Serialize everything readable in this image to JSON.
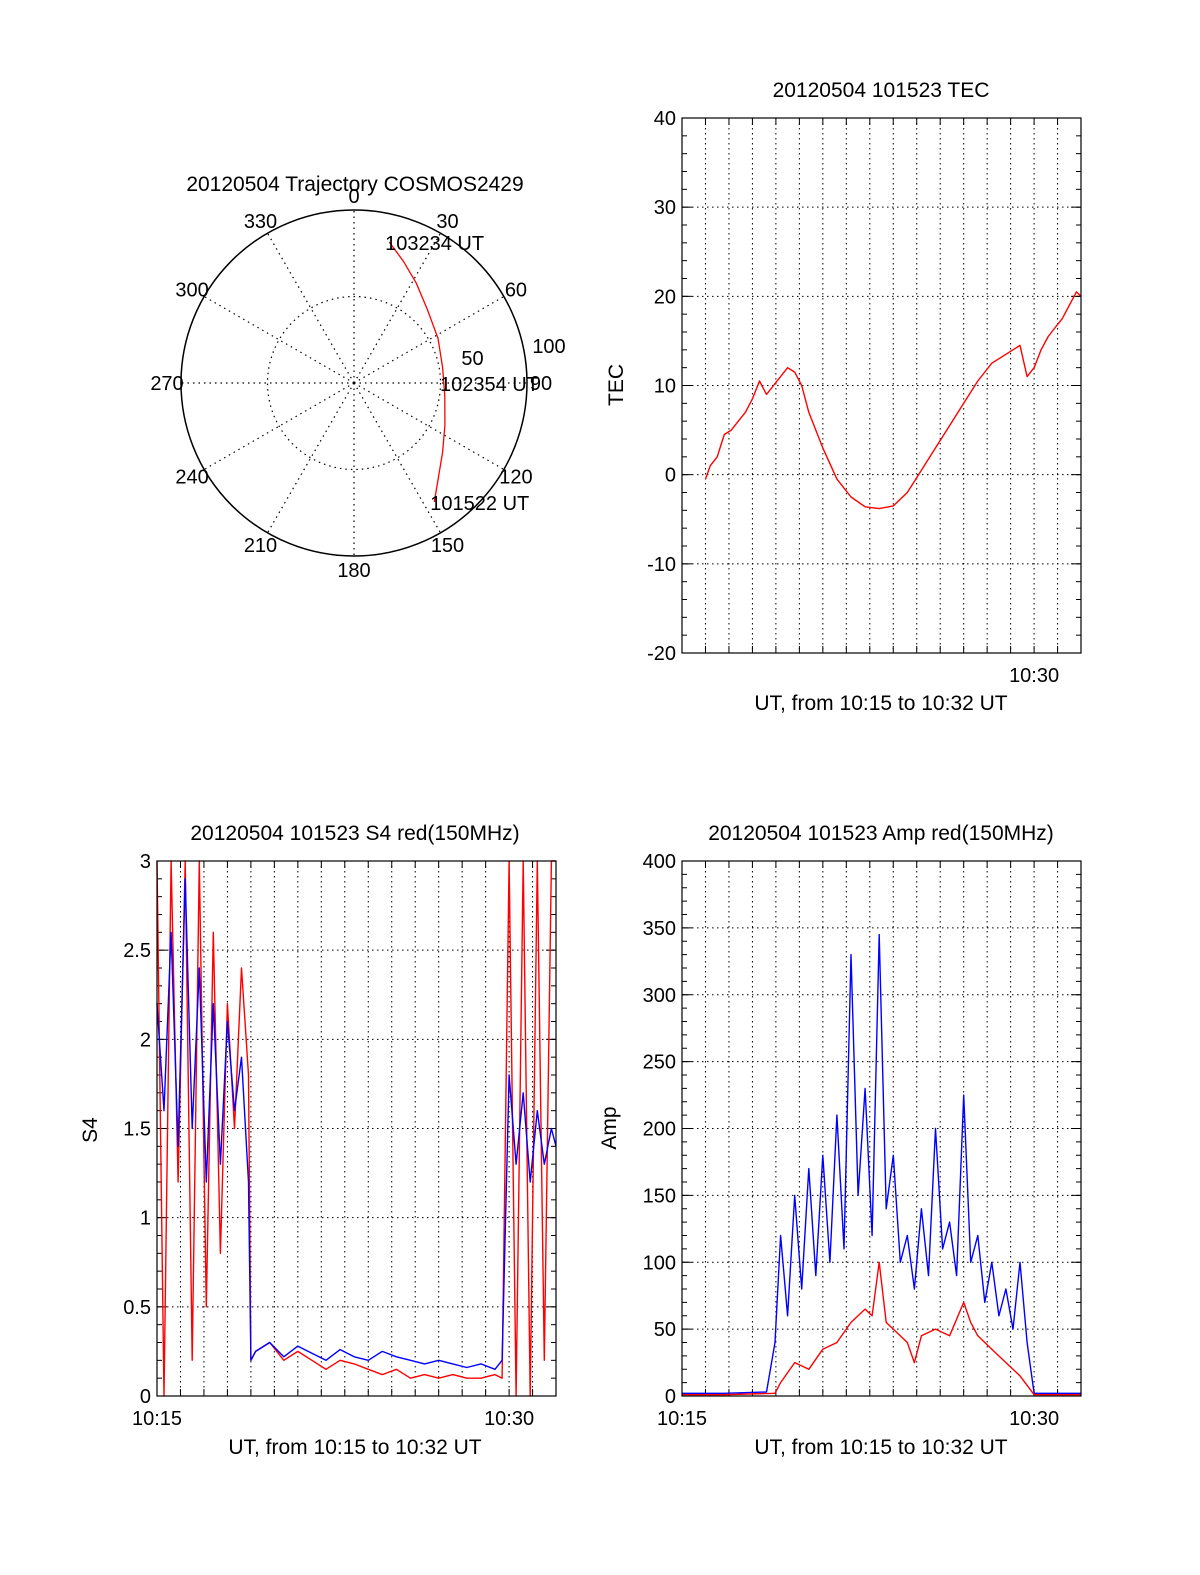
{
  "chart_data": [
    {
      "id": "trajectory",
      "type": "polar",
      "title": "20120504 Trajectory COSMOS2429",
      "azimuth_labels": [
        "0",
        "30",
        "60",
        "90",
        "120",
        "150",
        "180",
        "210",
        "240",
        "270",
        "300",
        "330"
      ],
      "radial_labels": [
        "50",
        "100"
      ],
      "radial_max": 100,
      "grid": true,
      "series": [
        {
          "color": "#ff0000",
          "points": [
            {
              "az": 14,
              "r": 84
            },
            {
              "az": 22,
              "r": 76
            },
            {
              "az": 32,
              "r": 68
            },
            {
              "az": 45,
              "r": 60
            },
            {
              "az": 62,
              "r": 55
            },
            {
              "az": 80,
              "r": 52
            },
            {
              "az": 98,
              "r": 53
            },
            {
              "az": 115,
              "r": 58
            },
            {
              "az": 128,
              "r": 65
            },
            {
              "az": 138,
              "r": 73
            },
            {
              "az": 146,
              "r": 83
            }
          ]
        }
      ],
      "annotations": [
        {
          "text": "103234 UT",
          "az": 14,
          "r": 84
        },
        {
          "text": "102354 UT",
          "az": 90,
          "r": 52
        },
        {
          "text": "101522 UT",
          "az": 146,
          "r": 83
        }
      ]
    },
    {
      "id": "tec",
      "type": "line",
      "title": "20120504 101523 TEC",
      "xlabel": "UT, from 10:15 to 10:32 UT",
      "ylabel": "TEC",
      "xlim": [
        10.25,
        10.5333
      ],
      "ylim": [
        -20,
        40
      ],
      "yticks": [
        -20,
        -10,
        0,
        10,
        20,
        30,
        40
      ],
      "xtick_labels": [
        {
          "x": 10.5,
          "label": "10:30"
        }
      ],
      "grid": true,
      "series": [
        {
          "color": "#ff0000",
          "x": [
            10.2667,
            10.27,
            10.275,
            10.28,
            10.285,
            10.29,
            10.295,
            10.3,
            10.305,
            10.31,
            10.315,
            10.32,
            10.325,
            10.33,
            10.335,
            10.34,
            10.35,
            10.36,
            10.37,
            10.38,
            10.39,
            10.4,
            10.41,
            10.42,
            10.43,
            10.44,
            10.45,
            10.46,
            10.47,
            10.48,
            10.49,
            10.495,
            10.5,
            10.505,
            10.51,
            10.515,
            10.52,
            10.525,
            10.53,
            10.5333
          ],
          "y": [
            -0.5,
            1,
            2,
            4.5,
            5,
            6,
            7,
            8.5,
            10.5,
            9,
            10,
            11,
            12,
            11.5,
            10,
            7,
            3,
            -0.5,
            -2.5,
            -3.6,
            -3.8,
            -3.5,
            -2,
            0.5,
            3,
            5.5,
            8,
            10.5,
            12.5,
            13.5,
            14.5,
            11,
            12,
            14,
            15.5,
            16.5,
            17.5,
            19,
            20.5,
            20
          ]
        }
      ]
    },
    {
      "id": "s4",
      "type": "line",
      "title": "20120504 101523 S4 red(150MHz)",
      "xlabel": "UT, from 10:15 to 10:32 UT",
      "ylabel": "S4",
      "xlim": [
        10.25,
        10.5333
      ],
      "ylim": [
        0,
        3
      ],
      "yticks": [
        0,
        0.5,
        1,
        1.5,
        2,
        2.5,
        3
      ],
      "ytick_labels": [
        "0",
        "0.5",
        "1",
        "1.5",
        "2",
        "2.5",
        "3"
      ],
      "xtick_labels": [
        {
          "x": 10.25,
          "label": "10:15"
        },
        {
          "x": 10.5,
          "label": "10:30"
        }
      ],
      "grid": true,
      "series": [
        {
          "color": "#ff0000",
          "x": [
            10.25,
            10.255,
            10.26,
            10.265,
            10.27,
            10.275,
            10.28,
            10.285,
            10.29,
            10.295,
            10.3,
            10.305,
            10.31,
            10.315,
            10.3167,
            10.32,
            10.33,
            10.34,
            10.35,
            10.36,
            10.37,
            10.38,
            10.39,
            10.4,
            10.41,
            10.42,
            10.43,
            10.44,
            10.45,
            10.46,
            10.47,
            10.48,
            10.49,
            10.495,
            10.5,
            10.505,
            10.51,
            10.515,
            10.52,
            10.525,
            10.53,
            10.5333
          ],
          "y": [
            3,
            0,
            3,
            1.2,
            3,
            0.2,
            3,
            0.5,
            2.6,
            0.8,
            2.2,
            1.5,
            2.4,
            1.8,
            0.2,
            0.25,
            0.3,
            0.2,
            0.25,
            0.2,
            0.15,
            0.2,
            0.18,
            0.15,
            0.12,
            0.15,
            0.1,
            0.12,
            0.1,
            0.12,
            0.1,
            0.1,
            0.12,
            0.1,
            3,
            0,
            3,
            0,
            3,
            0.2,
            3,
            3
          ]
        },
        {
          "color": "#0000ff",
          "x": [
            10.25,
            10.255,
            10.26,
            10.265,
            10.27,
            10.275,
            10.28,
            10.285,
            10.29,
            10.295,
            10.3,
            10.305,
            10.31,
            10.315,
            10.3167,
            10.32,
            10.33,
            10.34,
            10.35,
            10.36,
            10.37,
            10.38,
            10.39,
            10.4,
            10.41,
            10.42,
            10.43,
            10.44,
            10.45,
            10.46,
            10.47,
            10.48,
            10.49,
            10.495,
            10.5,
            10.505,
            10.51,
            10.515,
            10.52,
            10.525,
            10.53,
            10.5333
          ],
          "y": [
            2.2,
            1.6,
            2.6,
            1.4,
            2.9,
            1.5,
            2.4,
            1.2,
            2.2,
            1.3,
            2.1,
            1.6,
            1.9,
            1.2,
            0.2,
            0.25,
            0.3,
            0.22,
            0.28,
            0.24,
            0.2,
            0.26,
            0.22,
            0.2,
            0.25,
            0.22,
            0.2,
            0.18,
            0.2,
            0.18,
            0.16,
            0.18,
            0.15,
            0.2,
            1.8,
            1.3,
            1.7,
            1.2,
            1.6,
            1.3,
            1.5,
            1.4
          ]
        }
      ]
    },
    {
      "id": "amp",
      "type": "line",
      "title": "20120504 101523 Amp red(150MHz)",
      "xlabel": "UT, from 10:15 to 10:32 UT",
      "ylabel": "Amp",
      "xlim": [
        10.25,
        10.5333
      ],
      "ylim": [
        0,
        400
      ],
      "yticks": [
        0,
        50,
        100,
        150,
        200,
        250,
        300,
        350,
        400
      ],
      "xtick_labels": [
        {
          "x": 10.25,
          "label": "10:15"
        },
        {
          "x": 10.5,
          "label": "10:30"
        }
      ],
      "grid": true,
      "series": [
        {
          "color": "#0000ff",
          "x": [
            10.25,
            10.28,
            10.31,
            10.316,
            10.32,
            10.325,
            10.33,
            10.335,
            10.34,
            10.345,
            10.35,
            10.355,
            10.36,
            10.365,
            10.37,
            10.375,
            10.38,
            10.385,
            10.39,
            10.395,
            10.4,
            10.405,
            10.41,
            10.415,
            10.42,
            10.425,
            10.43,
            10.435,
            10.44,
            10.445,
            10.45,
            10.455,
            10.46,
            10.465,
            10.47,
            10.475,
            10.48,
            10.485,
            10.49,
            10.495,
            10.5,
            10.51,
            10.52,
            10.5333
          ],
          "y": [
            2,
            2,
            3,
            40,
            120,
            60,
            150,
            80,
            170,
            90,
            180,
            100,
            210,
            110,
            330,
            150,
            230,
            120,
            345,
            140,
            180,
            100,
            120,
            80,
            140,
            90,
            200,
            110,
            130,
            90,
            225,
            100,
            120,
            70,
            100,
            60,
            80,
            50,
            100,
            40,
            2,
            2,
            2,
            2
          ]
        },
        {
          "color": "#ff0000",
          "x": [
            10.25,
            10.28,
            10.316,
            10.32,
            10.33,
            10.34,
            10.35,
            10.36,
            10.37,
            10.38,
            10.385,
            10.39,
            10.395,
            10.4,
            10.41,
            10.415,
            10.42,
            10.43,
            10.44,
            10.45,
            10.455,
            10.46,
            10.47,
            10.48,
            10.49,
            10.495,
            10.5,
            10.51,
            10.5333
          ],
          "y": [
            1,
            1,
            2,
            10,
            25,
            20,
            35,
            40,
            55,
            65,
            60,
            100,
            55,
            50,
            40,
            25,
            45,
            50,
            45,
            70,
            55,
            45,
            35,
            25,
            15,
            8,
            1,
            1,
            1
          ]
        }
      ]
    }
  ]
}
